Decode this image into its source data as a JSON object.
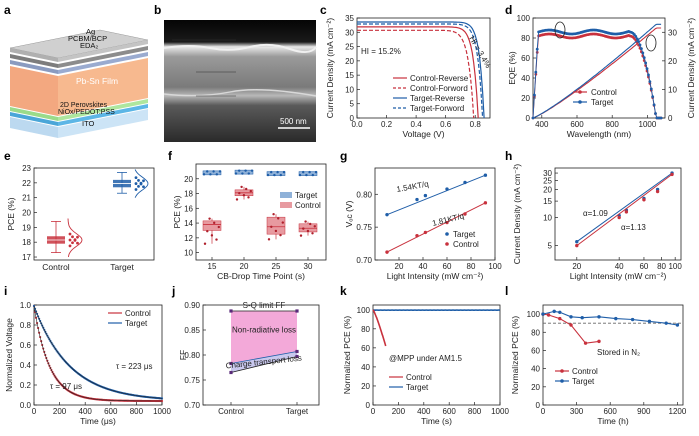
{
  "figure": {
    "panel_labels": [
      "a",
      "b",
      "c",
      "d",
      "e",
      "f",
      "g",
      "h",
      "i",
      "j",
      "k",
      "l"
    ],
    "colors": {
      "control": "#c8313d",
      "target": "#1f5ea8",
      "pink": "#f3a9d9",
      "dark": "#222222"
    }
  },
  "panel_a": {
    "layers": [
      "Ag",
      "PCBM/BCP",
      "EDA₂",
      "Pb-Sn Film",
      "2D Perovskites",
      "NiOx/PEDOT:PSS",
      "ITO"
    ]
  },
  "panel_b": {
    "scalebar": "500 nm"
  },
  "chart_data": [
    {
      "id": "c",
      "type": "line",
      "xlabel": "Voltage (V)",
      "ylabel": "Current Density (mA cm⁻²)",
      "xlim": [
        0,
        0.9
      ],
      "ylim": [
        0,
        35
      ],
      "xticks": [
        "0.0",
        "0.2",
        "0.4",
        "0.6",
        "0.8"
      ],
      "yticks": [
        "0",
        "5",
        "10",
        "15",
        "20",
        "25",
        "30",
        "35"
      ],
      "annotations": [
        "HI = 15.2%",
        "HI = 3.4%"
      ],
      "series": [
        {
          "name": "Control-Reverse",
          "color": "#c8313d",
          "dash": false,
          "jsc": 31.9,
          "voc": 0.82,
          "n": 3.0
        },
        {
          "name": "Control-Forword",
          "color": "#c8313d",
          "dash": true,
          "jsc": 30.7,
          "voc": 0.79,
          "n": 2.6
        },
        {
          "name": "Target-Reverse",
          "color": "#1f5ea8",
          "dash": false,
          "jsc": 33.6,
          "voc": 0.86,
          "n": 3.3
        },
        {
          "name": "Target-Forword",
          "color": "#1f5ea8",
          "dash": true,
          "jsc": 32.9,
          "voc": 0.85,
          "n": 3.1
        }
      ]
    },
    {
      "id": "d",
      "type": "line",
      "xlabel": "Wavelength (nm)",
      "ylabel": "EQE (%)",
      "y2label": "Current Density (mA cm⁻²)",
      "xlim": [
        350,
        1100
      ],
      "ylim": [
        0,
        100
      ],
      "y2lim": [
        0,
        35
      ],
      "xticks": [
        "400",
        "600",
        "800",
        "1000"
      ],
      "yticks": [
        "0",
        "20",
        "40",
        "60",
        "80",
        "100"
      ],
      "y2ticks": [
        "0",
        "10",
        "20",
        "30"
      ],
      "series": [
        {
          "name": "Control",
          "color": "#c8313d",
          "eqe_plateau": 82
        },
        {
          "name": "Target",
          "color": "#1f5ea8",
          "eqe_plateau": 86
        }
      ],
      "integrated": {
        "Control": 31.5,
        "Target": 32.8
      }
    },
    {
      "id": "e",
      "type": "box",
      "ylabel": "PCE (%)",
      "ylim": [
        16.8,
        23
      ],
      "yticks": [
        "17",
        "18",
        "19",
        "20",
        "21",
        "22",
        "23"
      ],
      "categories": [
        "Control",
        "Target"
      ],
      "boxes": [
        {
          "name": "Control",
          "q1": 17.9,
          "median": 18.15,
          "q3": 18.4,
          "min": 17.3,
          "max": 19.4
        },
        {
          "name": "Target",
          "q1": 21.7,
          "median": 21.95,
          "q3": 22.2,
          "min": 21.3,
          "max": 22.7
        }
      ]
    },
    {
      "id": "f",
      "type": "box",
      "xlabel": "CB-Drop Time Point (s)",
      "ylabel": "PCE (%)",
      "ylim": [
        9,
        22
      ],
      "yticks": [
        "10",
        "12",
        "14",
        "16",
        "18",
        "20"
      ],
      "categories": [
        "15",
        "20",
        "25",
        "30"
      ],
      "legend": [
        "Target",
        "Control"
      ],
      "control": [
        {
          "q1": 13.0,
          "median": 13.8,
          "q3": 14.3,
          "min": 11.2,
          "max": 14.6
        },
        {
          "q1": 17.7,
          "median": 18.1,
          "q3": 18.5,
          "min": 17.2,
          "max": 18.9
        },
        {
          "q1": 12.5,
          "median": 13.5,
          "q3": 14.8,
          "min": 11.8,
          "max": 15.2
        },
        {
          "q1": 12.8,
          "median": 13.3,
          "q3": 13.9,
          "min": 12.3,
          "max": 14.2
        }
      ],
      "target": [
        {
          "median": 20.8
        },
        {
          "median": 20.9
        },
        {
          "median": 20.7
        },
        {
          "median": 20.7
        }
      ]
    },
    {
      "id": "g",
      "type": "scatter",
      "xlabel": "Light Intensity (mW cm⁻²)",
      "ylabel": "Vₒᴄ (V)",
      "xlim": [
        0,
        100
      ],
      "ylim": [
        0.7,
        0.84
      ],
      "xticks": [
        "20",
        "40",
        "60",
        "80",
        "100"
      ],
      "yticks": [
        "0.70",
        "0.75",
        "0.80"
      ],
      "annotations": [
        "1.54KT/q",
        "1.81KT/q"
      ],
      "series": [
        {
          "name": "Target",
          "color": "#1f5ea8",
          "x": [
            10,
            35,
            42,
            60,
            75,
            92
          ],
          "y": [
            0.769,
            0.792,
            0.798,
            0.808,
            0.818,
            0.829
          ]
        },
        {
          "name": "Control",
          "color": "#c8313d",
          "x": [
            10,
            35,
            42,
            60,
            75,
            92
          ],
          "y": [
            0.712,
            0.737,
            0.742,
            0.757,
            0.77,
            0.787
          ]
        }
      ]
    },
    {
      "id": "h",
      "type": "scatter",
      "xlabel": "Light Intensity (mW cm⁻²)",
      "ylabel": "Current Density (mA cm⁻²)",
      "xticks": [
        "20",
        "40",
        "60",
        "80",
        "100"
      ],
      "yticks": [
        "5",
        "10",
        "15",
        "20",
        "25",
        "30"
      ],
      "annotations": [
        "α=1.09",
        "α=1.13"
      ],
      "series": [
        {
          "name": "Target",
          "color": "#1f5ea8",
          "x": [
            20,
            40,
            45,
            60,
            75,
            95
          ],
          "y": [
            5.5,
            10.5,
            12,
            16,
            20,
            30
          ]
        },
        {
          "name": "Control",
          "color": "#c8313d",
          "x": [
            20,
            40,
            45,
            60,
            75,
            95
          ],
          "y": [
            5,
            10,
            11.5,
            15.5,
            19,
            29
          ]
        }
      ]
    },
    {
      "id": "i",
      "type": "line",
      "xlabel": "Time (μs)",
      "ylabel": "Normalized Voltage",
      "xlim": [
        0,
        1000
      ],
      "ylim": [
        0,
        1
      ],
      "xticks": [
        "0",
        "200",
        "400",
        "600",
        "800",
        "1000"
      ],
      "yticks": [
        "0.0",
        "0.2",
        "0.4",
        "0.6",
        "0.8",
        "1.0"
      ],
      "annotations": [
        "τ = 223 μs",
        "τ = 97 μs"
      ],
      "series": [
        {
          "name": "Control",
          "color": "#c8313d",
          "tau": 97
        },
        {
          "name": "Target",
          "color": "#1f5ea8",
          "tau": 223
        }
      ]
    },
    {
      "id": "j",
      "type": "area",
      "ylabel": "FF",
      "ylim": [
        0.7,
        0.9
      ],
      "yticks": [
        "0.70",
        "0.75",
        "0.80",
        "0.85",
        "0.90"
      ],
      "categories": [
        "Control",
        "Target"
      ],
      "sq_limit": 0.888,
      "nonrad": [
        0.783,
        0.807
      ],
      "ctl": [
        0.765,
        0.797
      ],
      "labels": [
        "S-Q limit FF",
        "Non-radiative loss",
        "Charge transport loss"
      ]
    },
    {
      "id": "k",
      "type": "line",
      "xlabel": "Time (s)",
      "ylabel": "Normalized PCE (%)",
      "xlim": [
        0,
        1000
      ],
      "ylim": [
        0,
        105
      ],
      "xticks": [
        "0",
        "200",
        "400",
        "600",
        "800",
        "1000"
      ],
      "yticks": [
        "0",
        "20",
        "40",
        "60",
        "80",
        "100"
      ],
      "annotation": "@MPP under AM1.5",
      "series": [
        {
          "name": "Control",
          "color": "#c8313d"
        },
        {
          "name": "Target",
          "color": "#1f5ea8"
        }
      ]
    },
    {
      "id": "l",
      "type": "line",
      "xlabel": "Time (h)",
      "ylabel": "Normalized PCE (%)",
      "xlim": [
        0,
        1250
      ],
      "ylim": [
        0,
        110
      ],
      "xticks": [
        "0",
        "300",
        "600",
        "900",
        "1200"
      ],
      "yticks": [
        "0",
        "20",
        "40",
        "60",
        "80",
        "100"
      ],
      "annotation": "Stored in N₂",
      "reference": 90,
      "series": [
        {
          "name": "Control",
          "color": "#c8313d",
          "x": [
            0,
            50,
            150,
            250,
            380,
            500
          ],
          "y": [
            100,
            99,
            95,
            88,
            68,
            70
          ]
        },
        {
          "name": "Target",
          "color": "#1f5ea8",
          "x": [
            0,
            100,
            150,
            250,
            350,
            500,
            650,
            800,
            950,
            1100,
            1200
          ],
          "y": [
            100,
            103,
            102,
            97,
            96,
            97,
            95,
            94,
            92,
            90,
            88
          ]
        }
      ]
    }
  ]
}
